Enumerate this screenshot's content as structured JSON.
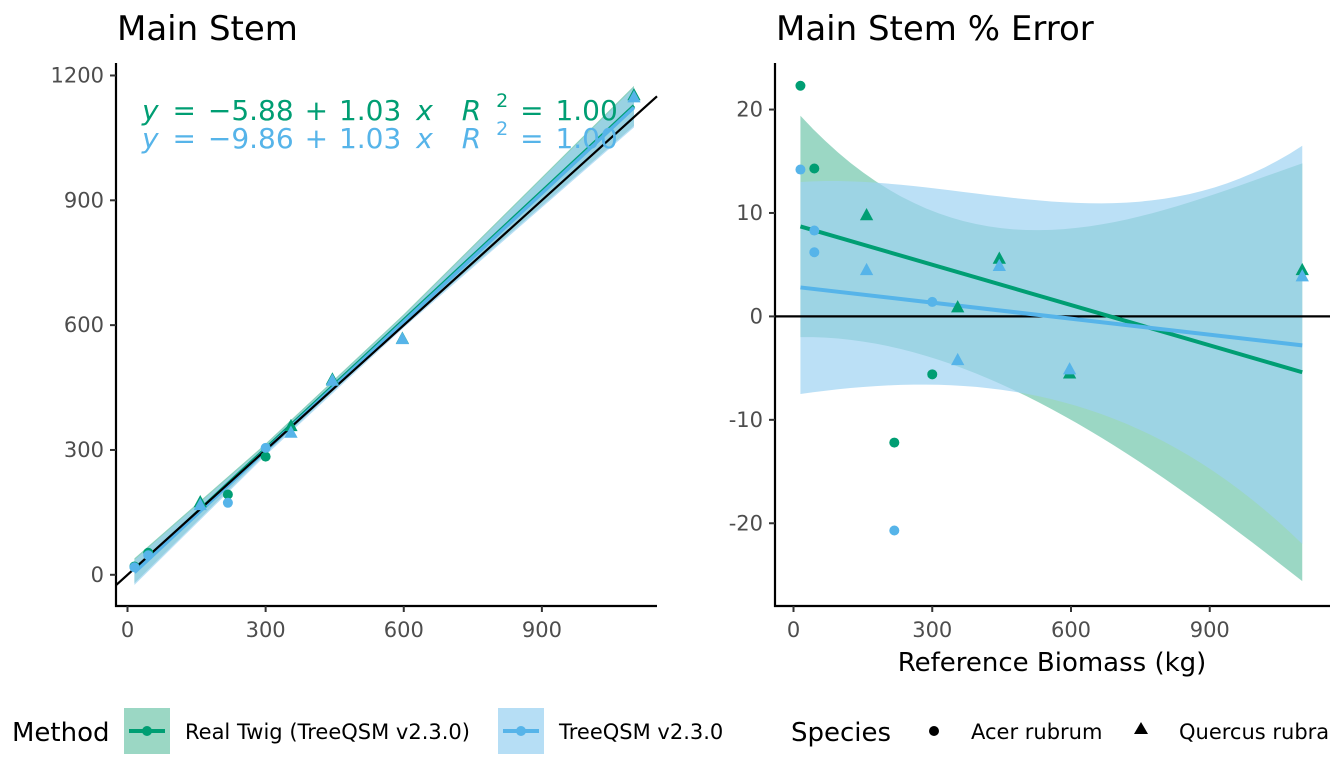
{
  "colors": {
    "real_twig": "#009E73",
    "treeqsm": "#56B4E9",
    "real_twig_band": "#66C2A5",
    "treeqsm_band": "#9ED3F2",
    "axis": "#000000",
    "tick_text": "#4d4d4d"
  },
  "chart_data": [
    {
      "type": "scatter",
      "title": "Main Stem",
      "xlabel": "",
      "ylabel": "",
      "xlim": [
        -25,
        1150
      ],
      "ylim": [
        -75,
        1230
      ],
      "x_ticks": [
        "0",
        "300",
        "600",
        "900"
      ],
      "y_ticks": [
        "0",
        "300",
        "600",
        "900",
        "1200"
      ],
      "identity_line": true,
      "equations": [
        {
          "series": "Real Twig (TreeQSM v2.3.0)",
          "y_label": "y",
          "equals": "=",
          "intercept": "−5.88",
          "plus": "+",
          "slope": "1.03",
          "x_label": "x",
          "r2_base": "R",
          "r2_exp": "2",
          "r2_equals": "=",
          "r2_value": "1.00"
        },
        {
          "series": "TreeQSM v2.3.0",
          "y_label": "y",
          "equals": "=",
          "intercept": "−9.86",
          "plus": "+",
          "slope": "1.03",
          "x_label": "x",
          "r2_base": "R",
          "r2_exp": "2",
          "r2_equals": "=",
          "r2_value": "1.00"
        }
      ],
      "series": [
        {
          "name": "Real Twig (TreeQSM v2.3.0)",
          "fit": {
            "intercept": -5.88,
            "slope": 1.03
          },
          "points": [
            {
              "x": 15,
              "y": 20,
              "species": "Acer rubrum"
            },
            {
              "x": 45,
              "y": 53,
              "species": "Acer rubrum"
            },
            {
              "x": 218,
              "y": 193,
              "species": "Acer rubrum"
            },
            {
              "x": 300,
              "y": 284,
              "species": "Acer rubrum"
            },
            {
              "x": 158,
              "y": 175,
              "species": "Quercus rubra"
            },
            {
              "x": 355,
              "y": 358,
              "species": "Quercus rubra"
            },
            {
              "x": 445,
              "y": 470,
              "species": "Quercus rubra"
            },
            {
              "x": 597,
              "y": 568,
              "species": "Quercus rubra"
            },
            {
              "x": 1100,
              "y": 1153,
              "species": "Quercus rubra"
            }
          ]
        },
        {
          "name": "TreeQSM v2.3.0",
          "fit": {
            "intercept": -9.86,
            "slope": 1.03
          },
          "points": [
            {
              "x": 15,
              "y": 18,
              "species": "Acer rubrum"
            },
            {
              "x": 45,
              "y": 47,
              "species": "Acer rubrum"
            },
            {
              "x": 218,
              "y": 173,
              "species": "Acer rubrum"
            },
            {
              "x": 300,
              "y": 305,
              "species": "Acer rubrum"
            },
            {
              "x": 158,
              "y": 168,
              "species": "Quercus rubra"
            },
            {
              "x": 355,
              "y": 342,
              "species": "Quercus rubra"
            },
            {
              "x": 445,
              "y": 467,
              "species": "Quercus rubra"
            },
            {
              "x": 597,
              "y": 567,
              "species": "Quercus rubra"
            },
            {
              "x": 1100,
              "y": 1148,
              "species": "Quercus rubra"
            }
          ]
        }
      ]
    },
    {
      "type": "scatter",
      "title": "Main Stem % Error",
      "xlabel": "Reference Biomass (kg)",
      "ylabel": "",
      "xlim": [
        -40,
        1160
      ],
      "ylim": [
        -28,
        24.5
      ],
      "x_ticks": [
        "0",
        "300",
        "600",
        "900"
      ],
      "y_ticks": [
        "-20",
        "-10",
        "0",
        "10",
        "20"
      ],
      "zero_line": true,
      "series": [
        {
          "name": "Real Twig (TreeQSM v2.3.0)",
          "fit": {
            "x": [
              15,
              1100
            ],
            "y": [
              8.7,
              -5.4
            ]
          },
          "band_x": [
            15,
            300,
            600,
            1100
          ],
          "band_upper": [
            19.4,
            10.2,
            8.5,
            14.8
          ],
          "band_lower": [
            -2.0,
            -4.0,
            -10.0,
            -25.6
          ],
          "points": [
            {
              "x": 15,
              "y": 22.3,
              "species": "Acer rubrum"
            },
            {
              "x": 45,
              "y": 14.3,
              "species": "Acer rubrum"
            },
            {
              "x": 218,
              "y": -12.2,
              "species": "Acer rubrum"
            },
            {
              "x": 300,
              "y": -5.6,
              "species": "Acer rubrum"
            },
            {
              "x": 158,
              "y": 9.8,
              "species": "Quercus rubra"
            },
            {
              "x": 355,
              "y": 0.9,
              "species": "Quercus rubra"
            },
            {
              "x": 445,
              "y": 5.6,
              "species": "Quercus rubra"
            },
            {
              "x": 597,
              "y": -5.5,
              "species": "Quercus rubra"
            },
            {
              "x": 1100,
              "y": 4.5,
              "species": "Quercus rubra"
            }
          ]
        },
        {
          "name": "TreeQSM v2.3.0",
          "fit": {
            "x": [
              15,
              1100
            ],
            "y": [
              2.8,
              -2.8
            ]
          },
          "band_x": [
            15,
            300,
            600,
            1100
          ],
          "band_upper": [
            13.0,
            12.4,
            11.0,
            16.5
          ],
          "band_lower": [
            -7.5,
            -6.6,
            -8.5,
            -22.0
          ],
          "points": [
            {
              "x": 15,
              "y": 14.2,
              "species": "Acer rubrum"
            },
            {
              "x": 45,
              "y": 6.2,
              "species": "Acer rubrum"
            },
            {
              "x": 218,
              "y": -20.7,
              "species": "Acer rubrum"
            },
            {
              "x": 300,
              "y": 1.4,
              "species": "Acer rubrum"
            },
            {
              "x": 45,
              "y": 8.3,
              "species": "Acer rubrum"
            },
            {
              "x": 158,
              "y": 4.5,
              "species": "Quercus rubra"
            },
            {
              "x": 355,
              "y": -4.2,
              "species": "Quercus rubra"
            },
            {
              "x": 445,
              "y": 4.9,
              "species": "Quercus rubra"
            },
            {
              "x": 597,
              "y": -5.1,
              "species": "Quercus rubra"
            },
            {
              "x": 1100,
              "y": 3.9,
              "species": "Quercus rubra"
            }
          ]
        }
      ]
    }
  ],
  "legend": {
    "method_title": "Method",
    "method_items": [
      {
        "label": "Real Twig (TreeQSM v2.3.0)"
      },
      {
        "label": "TreeQSM v2.3.0"
      }
    ],
    "species_title": "Species",
    "species_items": [
      {
        "label": "Acer rubrum",
        "shape": "circle"
      },
      {
        "label": "Quercus rubra",
        "shape": "triangle"
      }
    ]
  }
}
